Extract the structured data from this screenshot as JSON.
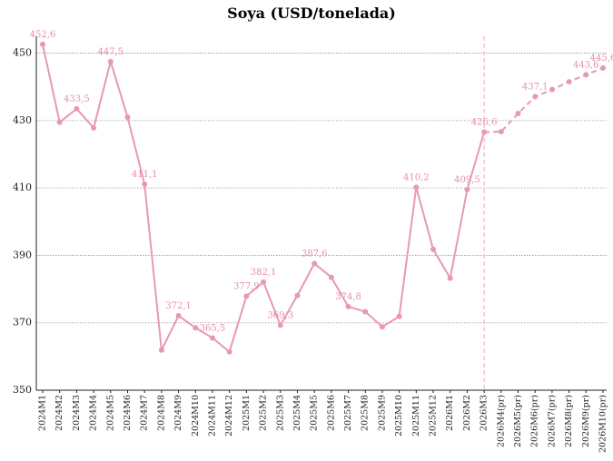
{
  "chart_data": {
    "type": "line",
    "title": "Soya (USD/tonelada)",
    "categories": [
      "2024M1",
      "2024M2",
      "2024M3",
      "2024M4",
      "2024M5",
      "2024M6",
      "2024M7",
      "2024M8",
      "2024M9",
      "2024M10",
      "2024M11",
      "2024M12",
      "2025M1",
      "2025M2",
      "2025M3",
      "2025M4",
      "2025M5",
      "2025M6",
      "2025M7",
      "2025M8",
      "2025M9",
      "2025M10",
      "2025M11",
      "2025M12",
      "2026M1",
      "2026M2",
      "2026M3",
      "2026M4(pr)",
      "2026M5(pr)",
      "2026M6(pr)",
      "2026M7(pr)",
      "2026M8(pr)",
      "2026M9(pr)",
      "2026M10(pr)"
    ],
    "series": [
      {
        "color": "#e899b0",
        "values": [
          452.6,
          429.5,
          433.5,
          427.8,
          447.5,
          431,
          411.1,
          361.9,
          372.1,
          368.5,
          365.5,
          361.4,
          377.9,
          382.1,
          369.3,
          378.1,
          387.6,
          383.5,
          374.8,
          373.3,
          368.8,
          371.9,
          410.2,
          391.8,
          383.2,
          409.5,
          426.6,
          426.7,
          432.1,
          437.1,
          439.2,
          441.5,
          443.6,
          445.6
        ],
        "value_labels": [
          "452,6",
          null,
          "433,5",
          null,
          "447,5",
          null,
          "411,1",
          null,
          "372,1",
          null,
          "365,5",
          null,
          "377,9",
          "382,1",
          "369,3",
          null,
          "387,6",
          null,
          "374,8",
          null,
          null,
          null,
          "410,2",
          null,
          null,
          "409,5",
          "426,6",
          null,
          null,
          "437,1",
          null,
          null,
          "443,6",
          "445,6"
        ]
      }
    ],
    "ylim": [
      350,
      455
    ],
    "yticks": [
      350,
      370,
      390,
      410,
      430,
      450
    ],
    "grid": true,
    "vline": {
      "x": "2026M3",
      "style": "dashed"
    }
  }
}
